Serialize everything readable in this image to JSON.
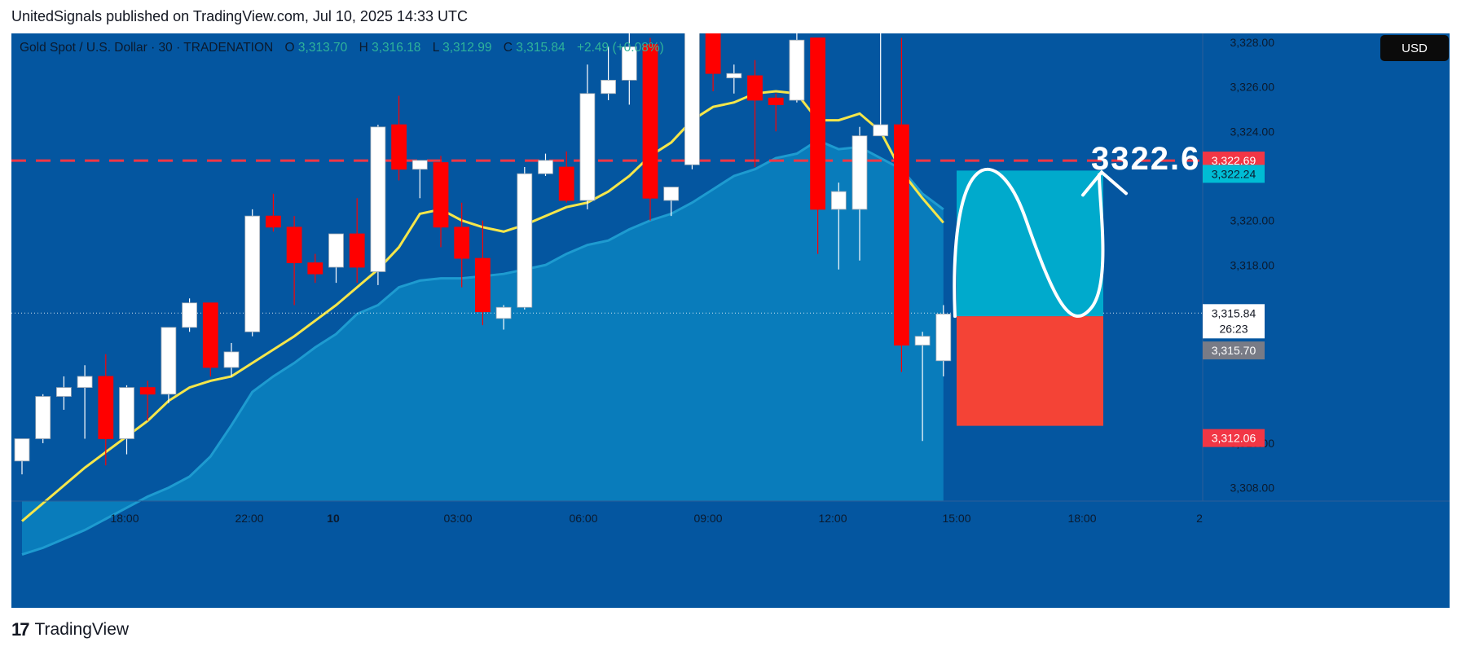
{
  "header": {
    "publisher": "UnitedSignals published on TradingView.com, Jul 10, 2025 14:33 UTC"
  },
  "footer": {
    "logo_icon": "tradingview-logo-icon",
    "brand": "TradingView"
  },
  "colors": {
    "background": "#0456a0",
    "up_candle": "#ffffff",
    "down_candle": "#ff0000",
    "ma_line": "#f5e64a",
    "area_fill": "#0b82c0",
    "target_box": "#00aacc",
    "stop_box": "#f44336",
    "dashed_level": "#f23645"
  },
  "legend": {
    "symbol": "Gold Spot / U.S. Dollar · 30 · TRADENATION",
    "o_label": "O",
    "o_value": "3,313.70",
    "h_label": "H",
    "h_value": "3,316.18",
    "l_label": "L",
    "l_value": "3,312.99",
    "c_label": "C",
    "c_value": "3,315.84",
    "change": "+2.49 (+0.08%)"
  },
  "currency_button": "USD",
  "annotation_text": "3322.6",
  "price_tags": {
    "dashed_level": "3,322.69",
    "target": "3,322.24",
    "current": "3,315.84",
    "countdown": "26:23",
    "open_mark": "3,315.70",
    "stop": "3,312.06"
  },
  "chart_data": {
    "type": "candlestick",
    "title": "Gold Spot / U.S. Dollar · 30 · TRADENATION",
    "x_tick_labels": [
      "18:00",
      "22:00",
      "10",
      "03:00",
      "06:00",
      "09:00",
      "12:00",
      "15:00",
      "18:00",
      "2"
    ],
    "y_tick_labels": [
      "3,308.00",
      "3,310.00",
      "3,318.00",
      "3,320.00",
      "3,324.00",
      "3,326.00",
      "3,328.00"
    ],
    "ylim": [
      3307.4,
      3328.4
    ],
    "candles": [
      {
        "o": 3309.2,
        "h": 3310.1,
        "l": 3308.6,
        "c": 3310.2
      },
      {
        "o": 3310.2,
        "h": 3312.2,
        "l": 3310.0,
        "c": 3312.1
      },
      {
        "o": 3312.1,
        "h": 3313.0,
        "l": 3311.5,
        "c": 3312.5
      },
      {
        "o": 3312.5,
        "h": 3313.5,
        "l": 3310.2,
        "c": 3313.0
      },
      {
        "o": 3313.0,
        "h": 3314.0,
        "l": 3309.0,
        "c": 3310.2
      },
      {
        "o": 3310.2,
        "h": 3312.6,
        "l": 3309.5,
        "c": 3312.5
      },
      {
        "o": 3312.5,
        "h": 3312.8,
        "l": 3311.0,
        "c": 3312.2
      },
      {
        "o": 3312.2,
        "h": 3315.2,
        "l": 3311.8,
        "c": 3315.2
      },
      {
        "o": 3315.2,
        "h": 3316.5,
        "l": 3315.0,
        "c": 3316.3
      },
      {
        "o": 3316.3,
        "h": 3316.3,
        "l": 3313.0,
        "c": 3313.4
      },
      {
        "o": 3313.4,
        "h": 3314.5,
        "l": 3313.0,
        "c": 3314.1
      },
      {
        "o": 3315.0,
        "h": 3320.5,
        "l": 3314.8,
        "c": 3320.2
      },
      {
        "o": 3320.2,
        "h": 3321.2,
        "l": 3319.5,
        "c": 3319.7
      },
      {
        "o": 3319.7,
        "h": 3320.2,
        "l": 3316.2,
        "c": 3318.1
      },
      {
        "o": 3318.1,
        "h": 3318.5,
        "l": 3317.2,
        "c": 3317.6
      },
      {
        "o": 3317.9,
        "h": 3319.3,
        "l": 3317.2,
        "c": 3319.4
      },
      {
        "o": 3319.4,
        "h": 3321.0,
        "l": 3317.2,
        "c": 3317.9
      },
      {
        "o": 3317.7,
        "h": 3324.3,
        "l": 3317.1,
        "c": 3324.2
      },
      {
        "o": 3324.3,
        "h": 3325.6,
        "l": 3321.8,
        "c": 3322.3
      },
      {
        "o": 3322.3,
        "h": 3322.7,
        "l": 3321.0,
        "c": 3322.7
      },
      {
        "o": 3322.6,
        "h": 3322.9,
        "l": 3318.8,
        "c": 3319.7
      },
      {
        "o": 3319.7,
        "h": 3320.8,
        "l": 3317.0,
        "c": 3318.3
      },
      {
        "o": 3318.3,
        "h": 3320.0,
        "l": 3315.3,
        "c": 3315.9
      },
      {
        "o": 3315.6,
        "h": 3316.2,
        "l": 3315.1,
        "c": 3316.1
      },
      {
        "o": 3316.1,
        "h": 3322.4,
        "l": 3316.0,
        "c": 3322.1
      },
      {
        "o": 3322.1,
        "h": 3323.0,
        "l": 3322.0,
        "c": 3322.7
      },
      {
        "o": 3322.4,
        "h": 3323.1,
        "l": 3320.8,
        "c": 3320.9
      },
      {
        "o": 3320.9,
        "h": 3327.0,
        "l": 3320.5,
        "c": 3325.7
      },
      {
        "o": 3325.7,
        "h": 3327.8,
        "l": 3325.4,
        "c": 3326.3
      },
      {
        "o": 3326.3,
        "h": 3328.5,
        "l": 3325.2,
        "c": 3327.8
      },
      {
        "o": 3327.9,
        "h": 3328.2,
        "l": 3320.0,
        "c": 3321.0
      },
      {
        "o": 3320.9,
        "h": 3321.5,
        "l": 3320.2,
        "c": 3321.5
      },
      {
        "o": 3322.5,
        "h": 3328.5,
        "l": 3322.3,
        "c": 3328.7
      },
      {
        "o": 3328.7,
        "h": 3329.0,
        "l": 3325.8,
        "c": 3326.6
      },
      {
        "o": 3326.4,
        "h": 3327.0,
        "l": 3325.7,
        "c": 3326.6
      },
      {
        "o": 3326.5,
        "h": 3327.2,
        "l": 3322.4,
        "c": 3325.4
      },
      {
        "o": 3325.5,
        "h": 3325.7,
        "l": 3324.0,
        "c": 3325.2
      },
      {
        "o": 3325.4,
        "h": 3329.0,
        "l": 3325.3,
        "c": 3328.1
      },
      {
        "o": 3328.2,
        "h": 3328.2,
        "l": 3318.5,
        "c": 3320.5
      },
      {
        "o": 3320.5,
        "h": 3321.7,
        "l": 3317.8,
        "c": 3321.3
      },
      {
        "o": 3320.5,
        "h": 3324.2,
        "l": 3318.2,
        "c": 3323.8
      },
      {
        "o": 3323.8,
        "h": 3329.0,
        "l": 3323.8,
        "c": 3324.3
      },
      {
        "o": 3324.3,
        "h": 3328.2,
        "l": 3313.2,
        "c": 3314.4
      },
      {
        "o": 3314.4,
        "h": 3315.0,
        "l": 3310.1,
        "c": 3314.8
      },
      {
        "o": 3313.7,
        "h": 3316.2,
        "l": 3313.0,
        "c": 3315.8
      }
    ],
    "moving_average": [
      3306.5,
      3307.3,
      3308.1,
      3308.9,
      3309.6,
      3310.3,
      3311.0,
      3311.9,
      3312.5,
      3312.8,
      3313.0,
      3313.6,
      3314.2,
      3314.8,
      3315.5,
      3316.2,
      3317.0,
      3317.8,
      3318.8,
      3320.3,
      3320.5,
      3320.0,
      3319.7,
      3319.5,
      3319.8,
      3320.2,
      3320.6,
      3320.8,
      3321.3,
      3322.0,
      3322.9,
      3323.5,
      3324.5,
      3325.1,
      3325.3,
      3325.7,
      3325.8,
      3325.7,
      3324.5,
      3324.5,
      3324.8,
      3324.0,
      3322.2,
      3321.0,
      3319.9
    ],
    "cloud_upper": [
      3305.0,
      3305.3,
      3305.7,
      3306.1,
      3306.6,
      3307.1,
      3307.6,
      3308.0,
      3308.5,
      3309.4,
      3310.8,
      3312.3,
      3313.0,
      3313.6,
      3314.3,
      3314.9,
      3315.8,
      3316.2,
      3317.0,
      3317.3,
      3317.4,
      3317.4,
      3317.5,
      3317.6,
      3317.8,
      3318.0,
      3318.5,
      3318.9,
      3319.1,
      3319.6,
      3320.0,
      3320.3,
      3320.8,
      3321.4,
      3322.0,
      3322.3,
      3322.8,
      3323.0,
      3323.6,
      3323.2,
      3323.3,
      3322.8,
      3322.3,
      3321.2,
      3320.5
    ],
    "price_lines": {
      "dashed_level": 3322.69,
      "target": 3322.24,
      "current": 3315.84,
      "open_mark": 3315.7,
      "stop": 3312.06
    },
    "position": {
      "entry": 3315.7,
      "target": 3322.24,
      "stop": 3312.06,
      "x_start": "15:00",
      "x_end": "18:00"
    },
    "legend_position": "top-left",
    "grid": false
  }
}
